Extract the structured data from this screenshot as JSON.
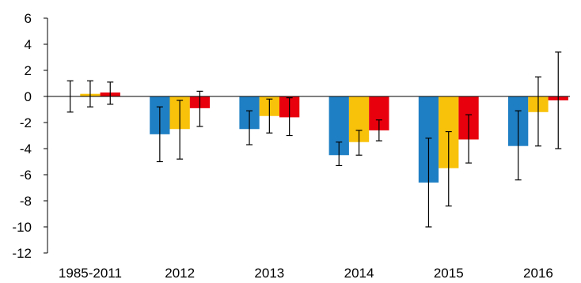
{
  "chart_data": {
    "type": "bar",
    "title": "",
    "xlabel": "",
    "ylabel": "",
    "ylim": [
      -12,
      6
    ],
    "yticks": [
      "6",
      "4",
      "2",
      "0",
      "-2",
      "-4",
      "-6",
      "-8",
      "-10",
      "-12"
    ],
    "grid": false,
    "legend": "none",
    "categories": [
      "1985-2011",
      "2012",
      "2013",
      "2014",
      "2015",
      "2016"
    ],
    "series": [
      {
        "color": "#1f7fc4",
        "values": [
          0.0,
          -2.9,
          -2.5,
          -4.5,
          -6.6,
          -3.8
        ],
        "error_low": [
          -1.2,
          -5.0,
          -3.7,
          -5.3,
          -10.0,
          -6.4
        ],
        "error_high": [
          1.2,
          -0.8,
          -1.1,
          -3.5,
          -3.2,
          -1.1
        ]
      },
      {
        "color": "#f9c20a",
        "values": [
          0.2,
          -2.5,
          -1.5,
          -3.5,
          -5.5,
          -1.2
        ],
        "error_low": [
          -0.8,
          -4.8,
          -2.8,
          -4.5,
          -8.4,
          -3.8
        ],
        "error_high": [
          1.2,
          -0.3,
          -0.2,
          -2.6,
          -2.7,
          1.5
        ]
      },
      {
        "color": "#e8000c",
        "values": [
          0.3,
          -0.9,
          -1.6,
          -2.6,
          -3.3,
          -0.3
        ],
        "error_low": [
          -0.6,
          -2.3,
          -3.0,
          -3.4,
          -5.1,
          -4.0
        ],
        "error_high": [
          1.1,
          0.4,
          -0.1,
          -1.8,
          -1.4,
          3.4
        ]
      }
    ]
  }
}
